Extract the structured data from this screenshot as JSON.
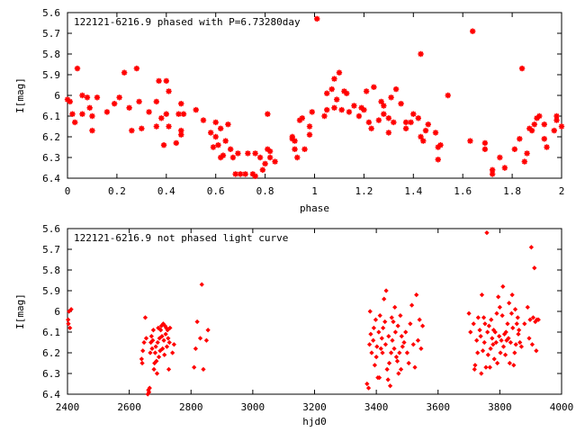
{
  "chart_data": [
    {
      "type": "scatter",
      "title": "122121-6216.9 phased with P=6.73280day",
      "xlabel": "phase",
      "ylabel": "I[mag]",
      "xlim": [
        0,
        2
      ],
      "ylim": [
        5.6,
        6.4
      ],
      "y_inverted": true,
      "xticks": [
        "0",
        "0.2",
        "0.4",
        "0.6",
        "0.8",
        "1",
        "1.2",
        "1.4",
        "1.6",
        "1.8",
        "2"
      ],
      "yticks": [
        "5.6",
        "5.7",
        "5.8",
        "5.9",
        "6",
        "6.1",
        "6.2",
        "6.3",
        "6.4"
      ],
      "marker": "star",
      "color": "#ff0000",
      "points": [
        [
          0.0,
          6.02
        ],
        [
          0.01,
          6.03
        ],
        [
          0.02,
          6.09
        ],
        [
          0.03,
          6.13
        ],
        [
          0.04,
          5.87
        ],
        [
          0.06,
          6.09
        ],
        [
          0.06,
          6.0
        ],
        [
          0.08,
          6.01
        ],
        [
          0.09,
          6.06
        ],
        [
          0.1,
          6.1
        ],
        [
          0.1,
          6.17
        ],
        [
          0.12,
          6.01
        ],
        [
          0.16,
          6.08
        ],
        [
          0.19,
          6.04
        ],
        [
          0.21,
          6.01
        ],
        [
          0.23,
          5.89
        ],
        [
          0.25,
          6.06
        ],
        [
          0.26,
          6.17
        ],
        [
          0.28,
          5.87
        ],
        [
          0.29,
          6.03
        ],
        [
          0.3,
          6.16
        ],
        [
          0.33,
          6.08
        ],
        [
          0.36,
          6.15
        ],
        [
          0.36,
          6.03
        ],
        [
          0.37,
          5.93
        ],
        [
          0.38,
          6.11
        ],
        [
          0.39,
          6.24
        ],
        [
          0.4,
          5.93
        ],
        [
          0.4,
          6.09
        ],
        [
          0.41,
          6.15
        ],
        [
          0.41,
          5.98
        ],
        [
          0.44,
          6.23
        ],
        [
          0.45,
          6.09
        ],
        [
          0.46,
          6.17
        ],
        [
          0.46,
          6.04
        ],
        [
          0.46,
          6.19
        ],
        [
          0.47,
          6.09
        ],
        [
          0.52,
          6.07
        ],
        [
          0.55,
          6.12
        ],
        [
          0.58,
          6.18
        ],
        [
          0.59,
          6.25
        ],
        [
          0.6,
          6.13
        ],
        [
          0.6,
          6.2
        ],
        [
          0.61,
          6.24
        ],
        [
          0.62,
          6.16
        ],
        [
          0.62,
          6.3
        ],
        [
          0.63,
          6.29
        ],
        [
          0.64,
          6.22
        ],
        [
          0.65,
          6.14
        ],
        [
          0.66,
          6.26
        ],
        [
          0.67,
          6.3
        ],
        [
          0.68,
          6.38
        ],
        [
          0.69,
          6.28
        ],
        [
          0.7,
          6.38
        ],
        [
          0.72,
          6.38
        ],
        [
          0.73,
          6.28
        ],
        [
          0.75,
          6.38
        ],
        [
          0.76,
          6.28
        ],
        [
          0.76,
          6.39
        ],
        [
          0.78,
          6.3
        ],
        [
          0.79,
          6.36
        ],
        [
          0.8,
          6.33
        ],
        [
          0.81,
          6.26
        ],
        [
          0.81,
          6.09
        ],
        [
          0.82,
          6.27
        ],
        [
          0.82,
          6.3
        ],
        [
          0.84,
          6.32
        ],
        [
          0.91,
          6.2
        ],
        [
          0.91,
          6.21
        ],
        [
          0.92,
          6.22
        ],
        [
          0.92,
          6.26
        ],
        [
          0.93,
          6.3
        ],
        [
          0.94,
          6.12
        ],
        [
          0.95,
          6.11
        ],
        [
          0.96,
          6.26
        ],
        [
          0.98,
          6.19
        ],
        [
          0.98,
          6.15
        ],
        [
          0.99,
          6.08
        ],
        [
          1.01,
          5.63
        ],
        [
          1.04,
          6.1
        ],
        [
          1.05,
          6.07
        ],
        [
          1.05,
          5.99
        ],
        [
          1.07,
          5.97
        ],
        [
          1.08,
          6.06
        ],
        [
          1.08,
          5.92
        ],
        [
          1.09,
          6.02
        ],
        [
          1.1,
          5.89
        ],
        [
          1.11,
          6.07
        ],
        [
          1.12,
          5.98
        ],
        [
          1.13,
          5.99
        ],
        [
          1.14,
          6.08
        ],
        [
          1.16,
          6.05
        ],
        [
          1.18,
          6.1
        ],
        [
          1.19,
          6.06
        ],
        [
          1.2,
          6.07
        ],
        [
          1.21,
          5.98
        ],
        [
          1.22,
          6.13
        ],
        [
          1.23,
          6.16
        ],
        [
          1.24,
          5.96
        ],
        [
          1.26,
          6.12
        ],
        [
          1.27,
          6.03
        ],
        [
          1.28,
          6.05
        ],
        [
          1.28,
          6.09
        ],
        [
          1.3,
          6.11
        ],
        [
          1.3,
          6.18
        ],
        [
          1.31,
          6.01
        ],
        [
          1.32,
          6.13
        ],
        [
          1.33,
          5.97
        ],
        [
          1.35,
          6.04
        ],
        [
          1.37,
          6.13
        ],
        [
          1.37,
          6.16
        ],
        [
          1.39,
          6.13
        ],
        [
          1.4,
          6.09
        ],
        [
          1.42,
          6.11
        ],
        [
          1.43,
          6.2
        ],
        [
          1.43,
          5.8
        ],
        [
          1.44,
          6.22
        ],
        [
          1.45,
          6.17
        ],
        [
          1.46,
          6.14
        ],
        [
          1.49,
          6.18
        ],
        [
          1.5,
          6.25
        ],
        [
          1.5,
          6.31
        ],
        [
          1.51,
          6.24
        ],
        [
          1.54,
          6.0
        ],
        [
          1.63,
          6.22
        ],
        [
          1.64,
          5.69
        ],
        [
          1.69,
          6.23
        ],
        [
          1.69,
          6.26
        ],
        [
          1.72,
          6.36
        ],
        [
          1.72,
          6.38
        ],
        [
          1.75,
          6.3
        ],
        [
          1.77,
          6.35
        ],
        [
          1.81,
          6.26
        ],
        [
          1.83,
          6.21
        ],
        [
          1.84,
          5.87
        ],
        [
          1.85,
          6.32
        ],
        [
          1.86,
          6.28
        ],
        [
          1.87,
          6.16
        ],
        [
          1.88,
          6.17
        ],
        [
          1.89,
          6.14
        ],
        [
          1.9,
          6.11
        ],
        [
          1.91,
          6.1
        ],
        [
          1.93,
          6.14
        ],
        [
          1.93,
          6.21
        ],
        [
          1.94,
          6.25
        ],
        [
          1.97,
          6.17
        ],
        [
          1.98,
          6.12
        ],
        [
          1.98,
          6.1
        ],
        [
          2.0,
          6.15
        ]
      ]
    },
    {
      "type": "scatter",
      "title": "122121-6216.9 not phased light curve",
      "xlabel": "hjd0",
      "ylabel": "I[mag]",
      "xlim": [
        2400,
        4000
      ],
      "ylim": [
        5.6,
        6.4
      ],
      "y_inverted": true,
      "xticks": [
        "2400",
        "2600",
        "2800",
        "3000",
        "3200",
        "3400",
        "3600",
        "3800",
        "4000"
      ],
      "yticks": [
        "5.6",
        "5.7",
        "5.8",
        "5.9",
        "6",
        "6.1",
        "6.2",
        "6.3",
        "6.4"
      ],
      "marker": "diamond",
      "color": "#ff0000",
      "points": [
        [
          2402,
          6.04
        ],
        [
          2403,
          6.06
        ],
        [
          2405,
          6.0
        ],
        [
          2408,
          6.08
        ],
        [
          2412,
          5.99
        ],
        [
          2640,
          6.23
        ],
        [
          2642,
          6.25
        ],
        [
          2644,
          6.19
        ],
        [
          2648,
          6.15
        ],
        [
          2652,
          6.03
        ],
        [
          2655,
          6.13
        ],
        [
          2660,
          6.4
        ],
        [
          2662,
          6.38
        ],
        [
          2664,
          6.39
        ],
        [
          2666,
          6.37
        ],
        [
          2668,
          6.2
        ],
        [
          2670,
          6.15
        ],
        [
          2672,
          6.12
        ],
        [
          2674,
          6.18
        ],
        [
          2676,
          6.14
        ],
        [
          2678,
          6.09
        ],
        [
          2680,
          6.28
        ],
        [
          2682,
          6.25
        ],
        [
          2684,
          6.2
        ],
        [
          2686,
          6.17
        ],
        [
          2688,
          6.24
        ],
        [
          2690,
          6.3
        ],
        [
          2692,
          6.15
        ],
        [
          2694,
          6.08
        ],
        [
          2696,
          6.22
        ],
        [
          2698,
          6.13
        ],
        [
          2700,
          6.19
        ],
        [
          2702,
          6.09
        ],
        [
          2704,
          6.07
        ],
        [
          2706,
          6.12
        ],
        [
          2708,
          6.18
        ],
        [
          2710,
          6.06
        ],
        [
          2712,
          6.14
        ],
        [
          2714,
          6.21
        ],
        [
          2716,
          6.07
        ],
        [
          2718,
          6.11
        ],
        [
          2720,
          6.08
        ],
        [
          2722,
          6.17
        ],
        [
          2724,
          6.09
        ],
        [
          2726,
          6.13
        ],
        [
          2728,
          6.28
        ],
        [
          2730,
          6.15
        ],
        [
          2732,
          6.08
        ],
        [
          2740,
          6.2
        ],
        [
          2745,
          6.16
        ],
        [
          2810,
          6.27
        ],
        [
          2815,
          6.18
        ],
        [
          2820,
          6.05
        ],
        [
          2830,
          6.13
        ],
        [
          2835,
          5.87
        ],
        [
          2840,
          6.28
        ],
        [
          2850,
          6.14
        ],
        [
          2855,
          6.09
        ],
        [
          3370,
          6.35
        ],
        [
          3375,
          6.37
        ],
        [
          3378,
          6.16
        ],
        [
          3380,
          6.0
        ],
        [
          3382,
          6.11
        ],
        [
          3385,
          6.2
        ],
        [
          3390,
          6.14
        ],
        [
          3392,
          6.08
        ],
        [
          3395,
          6.26
        ],
        [
          3398,
          6.04
        ],
        [
          3400,
          6.22
        ],
        [
          3402,
          6.17
        ],
        [
          3405,
          6.32
        ],
        [
          3408,
          6.1
        ],
        [
          3410,
          6.32
        ],
        [
          3412,
          6.02
        ],
        [
          3415,
          6.18
        ],
        [
          3418,
          6.13
        ],
        [
          3420,
          6.2
        ],
        [
          3422,
          6.08
        ],
        [
          3425,
          5.94
        ],
        [
          3428,
          6.05
        ],
        [
          3430,
          6.16
        ],
        [
          3432,
          5.9
        ],
        [
          3435,
          6.28
        ],
        [
          3438,
          6.33
        ],
        [
          3440,
          6.12
        ],
        [
          3442,
          6.25
        ],
        [
          3445,
          6.36
        ],
        [
          3448,
          6.2
        ],
        [
          3450,
          6.03
        ],
        [
          3452,
          6.14
        ],
        [
          3455,
          6.05
        ],
        [
          3458,
          6.18
        ],
        [
          3460,
          5.98
        ],
        [
          3462,
          6.1
        ],
        [
          3465,
          6.22
        ],
        [
          3468,
          6.24
        ],
        [
          3470,
          6.07
        ],
        [
          3472,
          6.3
        ],
        [
          3475,
          6.2
        ],
        [
          3478,
          6.02
        ],
        [
          3480,
          6.28
        ],
        [
          3482,
          6.12
        ],
        [
          3485,
          6.17
        ],
        [
          3490,
          6.15
        ],
        [
          3495,
          6.1
        ],
        [
          3500,
          6.2
        ],
        [
          3505,
          6.25
        ],
        [
          3510,
          6.06
        ],
        [
          3515,
          5.97
        ],
        [
          3520,
          6.16
        ],
        [
          3525,
          6.27
        ],
        [
          3530,
          5.92
        ],
        [
          3535,
          6.14
        ],
        [
          3540,
          6.04
        ],
        [
          3545,
          6.18
        ],
        [
          3550,
          6.07
        ],
        [
          3700,
          6.01
        ],
        [
          3705,
          6.1
        ],
        [
          3715,
          6.06
        ],
        [
          3718,
          6.28
        ],
        [
          3720,
          6.26
        ],
        [
          3725,
          6.14
        ],
        [
          3728,
          6.2
        ],
        [
          3730,
          6.03
        ],
        [
          3735,
          6.09
        ],
        [
          3738,
          6.12
        ],
        [
          3740,
          6.3
        ],
        [
          3742,
          5.92
        ],
        [
          3745,
          6.19
        ],
        [
          3748,
          6.03
        ],
        [
          3750,
          6.15
        ],
        [
          3752,
          6.06
        ],
        [
          3755,
          6.27
        ],
        [
          3758,
          5.62
        ],
        [
          3760,
          6.1
        ],
        [
          3762,
          6.21
        ],
        [
          3765,
          6.07
        ],
        [
          3768,
          6.27
        ],
        [
          3770,
          6.18
        ],
        [
          3772,
          6.04
        ],
        [
          3775,
          6.13
        ],
        [
          3778,
          6.16
        ],
        [
          3780,
          6.09
        ],
        [
          3782,
          6.23
        ],
        [
          3785,
          6.1
        ],
        [
          3788,
          6.15
        ],
        [
          3790,
          6.01
        ],
        [
          3792,
          6.25
        ],
        [
          3795,
          5.93
        ],
        [
          3798,
          6.12
        ],
        [
          3800,
          5.98
        ],
        [
          3802,
          6.2
        ],
        [
          3805,
          6.14
        ],
        [
          3808,
          6.02
        ],
        [
          3810,
          5.88
        ],
        [
          3812,
          6.17
        ],
        [
          3815,
          6.11
        ],
        [
          3818,
          6.21
        ],
        [
          3820,
          6.1
        ],
        [
          3822,
          6.14
        ],
        [
          3825,
          6.06
        ],
        [
          3828,
          6.13
        ],
        [
          3830,
          5.96
        ],
        [
          3832,
          6.25
        ],
        [
          3835,
          6.15
        ],
        [
          3838,
          6.01
        ],
        [
          3840,
          5.92
        ],
        [
          3842,
          6.08
        ],
        [
          3845,
          6.26
        ],
        [
          3848,
          6.2
        ],
        [
          3850,
          5.99
        ],
        [
          3852,
          6.16
        ],
        [
          3855,
          6.06
        ],
        [
          3858,
          6.03
        ],
        [
          3860,
          6.11
        ],
        [
          3862,
          6.09
        ],
        [
          3865,
          6.15
        ],
        [
          3870,
          6.17
        ],
        [
          3880,
          6.06
        ],
        [
          3890,
          5.98
        ],
        [
          3895,
          6.13
        ],
        [
          3898,
          6.04
        ],
        [
          3902,
          5.69
        ],
        [
          3905,
          6.16
        ],
        [
          3908,
          6.03
        ],
        [
          3912,
          5.79
        ],
        [
          3915,
          6.05
        ],
        [
          3918,
          6.19
        ],
        [
          3920,
          6.04
        ],
        [
          3925,
          6.04
        ]
      ]
    }
  ]
}
